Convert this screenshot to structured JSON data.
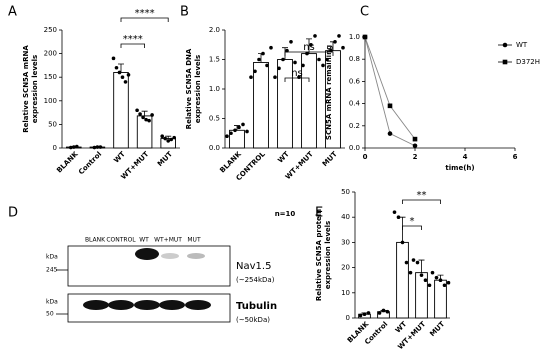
{
  "chart_data": [
    {
      "type": "bar",
      "panel": "A",
      "ylabel": [
        "Relative SCN5A mRNA",
        "expression levels"
      ],
      "categories": [
        "BLANK",
        "Control",
        "WT",
        "WT+MUT",
        "MUT"
      ],
      "values": [
        2,
        2,
        160,
        68,
        20
      ],
      "errors": [
        1,
        1,
        18,
        10,
        5
      ],
      "points": [
        [
          1,
          2,
          3
        ],
        [
          1,
          2,
          2
        ],
        [
          190,
          170,
          160,
          150,
          140,
          155
        ],
        [
          80,
          72,
          65,
          60,
          58,
          70
        ],
        [
          25,
          20,
          15,
          18,
          22
        ]
      ],
      "color": "#ffffff",
      "ylim": [
        0,
        250
      ],
      "yticks": [
        0,
        50,
        100,
        150,
        200,
        250
      ],
      "annotations": [
        "****",
        "****"
      ]
    },
    {
      "type": "bar",
      "panel": "B",
      "ylabel": [
        "Relative SCN5A DNA",
        "expression levels"
      ],
      "categories": [
        "BLANK",
        "CONTROL",
        "WT",
        "WT+MUT",
        "MUT"
      ],
      "values": [
        0.3,
        1.45,
        1.5,
        1.6,
        1.65
      ],
      "errors": [
        0.08,
        0.15,
        0.2,
        0.25,
        0.15
      ],
      "points": [
        [
          0.2,
          0.25,
          0.3,
          0.35,
          0.4,
          0.28
        ],
        [
          1.2,
          1.3,
          1.5,
          1.6,
          1.4,
          1.7
        ],
        [
          1.2,
          1.35,
          1.5,
          1.65,
          1.8,
          1.45
        ],
        [
          1.2,
          1.4,
          1.6,
          1.75,
          1.9,
          1.5
        ],
        [
          1.4,
          1.5,
          1.65,
          1.8,
          1.9,
          1.7
        ]
      ],
      "color": "#ffffff",
      "ylim": [
        0,
        2
      ],
      "yticks": [
        {
          "value": 0,
          "label": "0.0"
        },
        0.5,
        {
          "value": 1,
          "label": "1.0"
        },
        1.5,
        {
          "value": 2,
          "label": "2.0"
        }
      ],
      "annotations": [
        "ns",
        "ns"
      ],
      "note": "n=10"
    },
    {
      "type": "line",
      "panel": "C",
      "ylabel": [
        "SCN5A mRNA remaining"
      ],
      "xlabel": "time(h)",
      "x": [
        0,
        1,
        2
      ],
      "series": [
        {
          "name": "WT",
          "color": "#000000",
          "values": [
            1.0,
            0.13,
            0.02
          ]
        },
        {
          "name": "D372H",
          "color": "#000000",
          "values": [
            1.0,
            0.38,
            0.08
          ]
        }
      ],
      "xlim": [
        0,
        6
      ],
      "xticks": [
        0,
        2,
        4,
        6
      ],
      "ylim": [
        0,
        1
      ],
      "yticks": [
        {
          "value": 0,
          "label": "0.0"
        },
        0.2,
        0.4,
        0.6,
        0.8,
        {
          "value": 1,
          "label": "1.0"
        }
      ]
    },
    {
      "type": "bar",
      "panel": "E",
      "ylabel": [
        "Relative SCN5A protein",
        "expression levels"
      ],
      "categories": [
        "BLANK",
        "Control",
        "WT",
        "WT+MUT",
        "MUT"
      ],
      "values": [
        1.5,
        2.5,
        30,
        18,
        15
      ],
      "errors": [
        0.5,
        0.5,
        10,
        5,
        2
      ],
      "points": [
        [
          1,
          1.5,
          2
        ],
        [
          2,
          3,
          2.5
        ],
        [
          42,
          40,
          30,
          22,
          18
        ],
        [
          23,
          22,
          17,
          15,
          13
        ],
        [
          18,
          16,
          15,
          13,
          14
        ]
      ],
      "color": "#ffffff",
      "ylim": [
        0,
        50
      ],
      "yticks": [
        0,
        10,
        20,
        30,
        40,
        50
      ],
      "annotations": [
        "*",
        "**"
      ]
    }
  ],
  "blot": {
    "panel": "D",
    "lanes": [
      "BLANK",
      "CONTROL",
      "WT",
      "WT+MUT",
      "MUT"
    ],
    "top": {
      "name": "Nav1.5",
      "size": "(~254kDa)",
      "unit": "kDa",
      "marker": "245"
    },
    "bottom": {
      "name": "Tubulin",
      "size": "(~50kDa)",
      "unit": "kDa",
      "marker": "50"
    }
  }
}
